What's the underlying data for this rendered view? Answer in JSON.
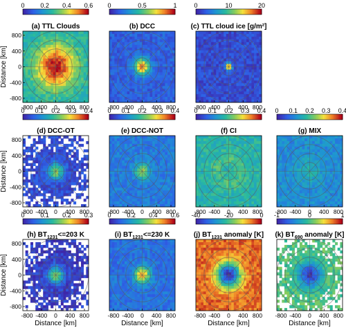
{
  "figure": {
    "xlabel": "Distance [km]",
    "ylabel": "Distance [km]",
    "axis_ticks": [
      "-800",
      "-400",
      "0",
      "400",
      "800"
    ],
    "y_ticks": [
      "800",
      "400",
      "0",
      "-400",
      "-800"
    ]
  },
  "chart_data": [
    {
      "type": "heatmap",
      "title": "(a) TTL Clouds",
      "cbar_ticks": [
        "0",
        "0.2",
        "0.4",
        "0.6"
      ],
      "clim": [
        0,
        0.6
      ],
      "colormap": "parula-to-red",
      "pattern": "broad",
      "peak": 0.6,
      "background": 0.25,
      "missing_outer": false,
      "grid": true
    },
    {
      "type": "heatmap",
      "title": "(b) DCC",
      "cbar_ticks": [
        "0",
        "0.5",
        "1"
      ],
      "clim": [
        0,
        1
      ],
      "colormap": "parula-to-red",
      "pattern": "core",
      "peak": 0.85,
      "background": 0.15,
      "missing_outer": false,
      "grid": true
    },
    {
      "type": "heatmap",
      "title": "(c) TTL cloud ice [g/m²]",
      "cbar_ticks": [
        "0",
        "10",
        "20"
      ],
      "clim": [
        0,
        20
      ],
      "colormap": "parula-to-red",
      "pattern": "spot",
      "peak": 20,
      "background": 2,
      "missing_outer": false,
      "grid": true
    },
    {
      "type": "heatmap",
      "title": "(d) DCC-OT",
      "cbar_ticks": [
        "0",
        "0.1",
        "0.2",
        "0.3",
        "0.4"
      ],
      "clim": [
        0,
        0.4
      ],
      "colormap": "parula-to-red",
      "pattern": "core",
      "peak": 0.25,
      "background": 0.04,
      "missing_outer": true,
      "grid": true
    },
    {
      "type": "heatmap",
      "title": "(e) DCC-NOT",
      "cbar_ticks": [
        "0",
        "0.1",
        "0.2",
        "0.3",
        "0.4"
      ],
      "clim": [
        0,
        0.4
      ],
      "colormap": "parula-to-red",
      "pattern": "core",
      "peak": 0.25,
      "background": 0.09,
      "missing_outer": false,
      "grid": true
    },
    {
      "type": "heatmap",
      "title": "(f) CI",
      "cbar_ticks": [
        "0",
        "0.1",
        "0.2",
        "0.3",
        "0.4"
      ],
      "clim": [
        0,
        0.4
      ],
      "colormap": "parula-to-red",
      "pattern": "ring",
      "peak": 0.2,
      "background": 0.17,
      "missing_outer": false,
      "grid": true
    },
    {
      "type": "heatmap",
      "title": "(g) MIX",
      "cbar_ticks": [
        "0",
        "0.1",
        "0.2",
        "0.3",
        "0.4"
      ],
      "clim": [
        0,
        0.4
      ],
      "colormap": "parula-to-red",
      "pattern": "flat",
      "peak": 0.16,
      "background": 0.11,
      "missing_outer": false,
      "grid": true
    },
    {
      "type": "heatmap",
      "title_parts": [
        "(h) BT",
        "1231",
        "<=203 K"
      ],
      "cbar_ticks": [
        "0",
        "0.1",
        "0.2",
        "0.3"
      ],
      "clim": [
        0,
        0.3
      ],
      "colormap": "parula-to-red",
      "pattern": "core",
      "peak": 0.18,
      "background": 0.02,
      "missing_outer": true,
      "grid": true
    },
    {
      "type": "heatmap",
      "title_parts": [
        "(i) BT",
        "1231",
        "<=230 K"
      ],
      "cbar_ticks": [
        "0",
        "0.2",
        "0.4",
        "0.6"
      ],
      "clim": [
        0,
        0.6
      ],
      "colormap": "parula-to-red",
      "pattern": "core",
      "peak": 0.5,
      "background": 0.12,
      "missing_outer": false,
      "grid": true
    },
    {
      "type": "heatmap",
      "title_parts": [
        "(j) BT",
        "1231",
        " anomaly [K]"
      ],
      "cbar_ticks": [
        "-40",
        "-20",
        "0"
      ],
      "clim": [
        -40,
        0
      ],
      "colormap": "parula-to-red",
      "pattern": "negcore",
      "peak": -40,
      "background": -5,
      "missing_outer": false,
      "grid": true
    },
    {
      "type": "heatmap",
      "title_parts": [
        "(k) BT",
        "690",
        " anomaly [K]"
      ],
      "cbar_ticks": [
        "-1",
        "0",
        "1"
      ],
      "clim": [
        -1,
        1
      ],
      "colormap": "parula-to-red",
      "pattern": "negcore",
      "peak": -0.9,
      "background": 0.05,
      "missing_outer": true,
      "grid": true
    }
  ]
}
